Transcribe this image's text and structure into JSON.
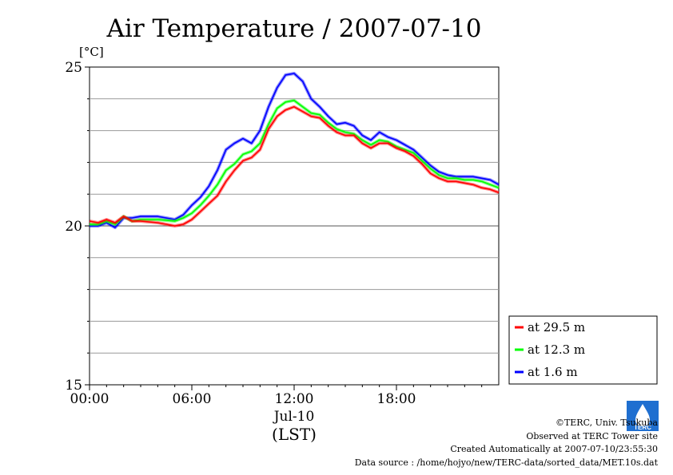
{
  "chart_data": {
    "type": "line",
    "title": "Air Temperature / 2007-07-10",
    "ylabel": "[°C]",
    "xlabel_date": "Jul-10",
    "xlabel_zone": "(LST)",
    "xlim_hours": [
      0,
      24
    ],
    "ylim": [
      15,
      25
    ],
    "x_ticks": [
      {
        "hour": 0,
        "label": "00:00"
      },
      {
        "hour": 6,
        "label": "06:00"
      },
      {
        "hour": 12,
        "label": "12:00"
      },
      {
        "hour": 18,
        "label": "18:00"
      }
    ],
    "y_ticks": [
      {
        "value": 15,
        "label": "15"
      },
      {
        "value": 20,
        "label": "20"
      },
      {
        "value": 25,
        "label": "25"
      }
    ],
    "y_gridlines": [
      16,
      17,
      18,
      19,
      21,
      22,
      23,
      24
    ],
    "grid": "horizontal",
    "legend_position": "bottom-right outside plot",
    "x_hours": [
      0,
      0.5,
      1,
      1.5,
      2,
      2.5,
      3,
      4,
      5,
      5.5,
      6,
      6.5,
      7,
      7.5,
      8,
      8.5,
      9,
      9.5,
      10,
      10.5,
      11,
      11.5,
      12,
      12.5,
      13,
      13.5,
      14,
      14.5,
      15,
      15.5,
      16,
      16.5,
      17,
      17.5,
      18,
      18.5,
      19,
      19.5,
      20,
      20.5,
      21,
      21.5,
      22,
      22.5,
      23,
      23.5,
      24
    ],
    "series": [
      {
        "name": "at 29.5 m",
        "color": "#ff0000",
        "values": [
          20.15,
          20.1,
          20.2,
          20.1,
          20.3,
          20.15,
          20.15,
          20.1,
          20.0,
          20.05,
          20.2,
          20.45,
          20.7,
          20.95,
          21.4,
          21.75,
          22.05,
          22.15,
          22.4,
          23.05,
          23.45,
          23.65,
          23.75,
          23.6,
          23.45,
          23.4,
          23.15,
          22.95,
          22.85,
          22.85,
          22.6,
          22.45,
          22.6,
          22.6,
          22.45,
          22.35,
          22.2,
          21.95,
          21.65,
          21.5,
          21.4,
          21.4,
          21.35,
          21.3,
          21.2,
          21.15,
          21.05
        ]
      },
      {
        "name": "at 12.3 m",
        "color": "#00ff00",
        "values": [
          20.05,
          20.05,
          20.15,
          20.05,
          20.3,
          20.15,
          20.2,
          20.2,
          20.15,
          20.25,
          20.4,
          20.65,
          20.95,
          21.3,
          21.75,
          21.95,
          22.25,
          22.35,
          22.6,
          23.2,
          23.7,
          23.9,
          23.95,
          23.75,
          23.55,
          23.5,
          23.25,
          23.05,
          22.95,
          22.9,
          22.7,
          22.55,
          22.7,
          22.65,
          22.5,
          22.4,
          22.3,
          22.05,
          21.8,
          21.6,
          21.5,
          21.5,
          21.45,
          21.45,
          21.4,
          21.3,
          21.2
        ]
      },
      {
        "name": "at 1.6 m",
        "color": "#0000ff",
        "values": [
          20.0,
          20.0,
          20.1,
          19.95,
          20.25,
          20.25,
          20.3,
          20.3,
          20.2,
          20.35,
          20.65,
          20.9,
          21.25,
          21.75,
          22.4,
          22.6,
          22.75,
          22.6,
          23.0,
          23.75,
          24.35,
          24.75,
          24.8,
          24.55,
          24.0,
          23.75,
          23.45,
          23.2,
          23.25,
          23.15,
          22.85,
          22.7,
          22.95,
          22.8,
          22.7,
          22.55,
          22.4,
          22.15,
          21.9,
          21.7,
          21.6,
          21.55,
          21.55,
          21.55,
          21.5,
          21.45,
          21.3
        ]
      }
    ]
  },
  "footer": {
    "copyright": "©TERC, Univ. Tsukuba",
    "observed": "Observed at TERC Tower site",
    "created": "Created Automatically at 2007-07-10/23:55:30",
    "source": "Data source : /home/hojyo/new/TERC-data/sorted_data/MET.10s.dat",
    "logo_text": "TERC"
  }
}
